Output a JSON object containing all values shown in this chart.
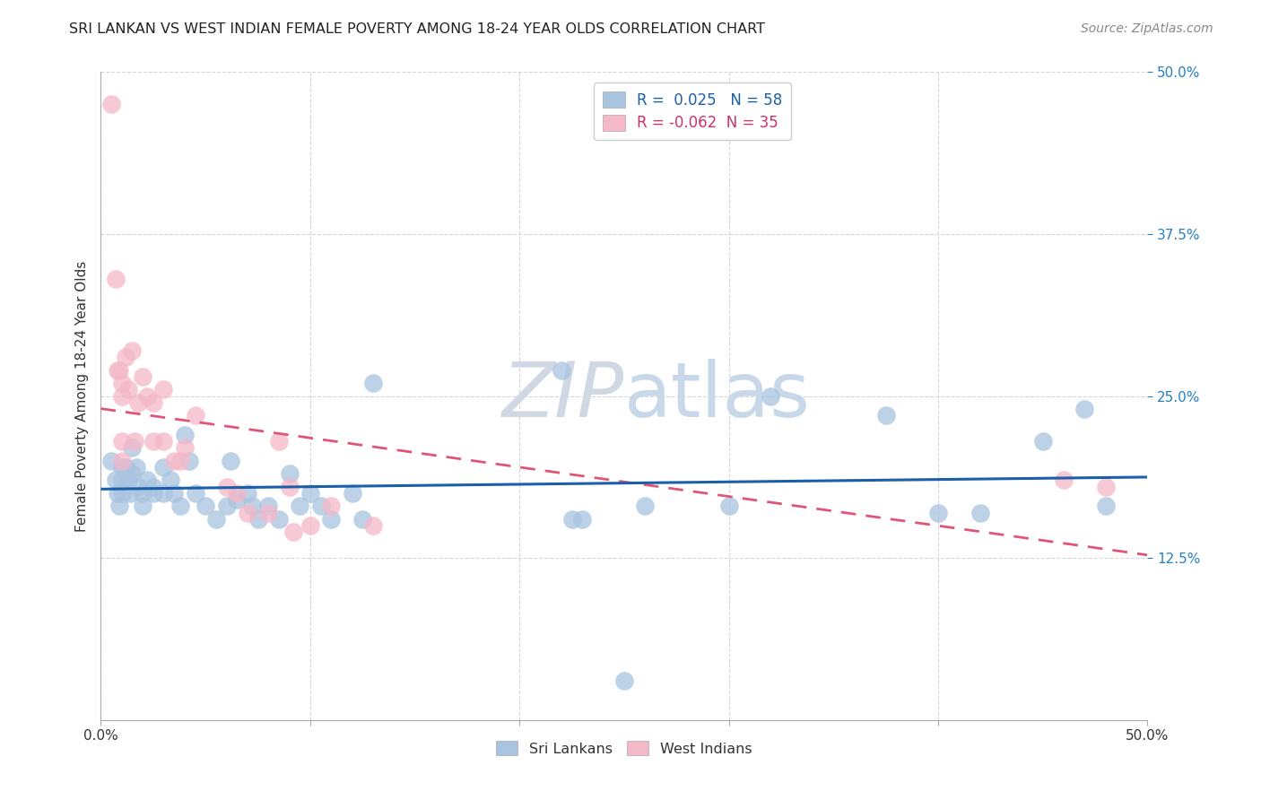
{
  "title": "SRI LANKAN VS WEST INDIAN FEMALE POVERTY AMONG 18-24 YEAR OLDS CORRELATION CHART",
  "source": "Source: ZipAtlas.com",
  "ylabel": "Female Poverty Among 18-24 Year Olds",
  "xlim": [
    0.0,
    0.5
  ],
  "ylim": [
    0.0,
    0.5
  ],
  "xticks": [
    0.0,
    0.1,
    0.2,
    0.3,
    0.4,
    0.5
  ],
  "yticks": [
    0.125,
    0.25,
    0.375,
    0.5
  ],
  "xticklabels": [
    "0.0%",
    "",
    "",
    "",
    "",
    "50.0%"
  ],
  "yticklabels_right": [
    "12.5%",
    "25.0%",
    "37.5%",
    "50.0%"
  ],
  "sri_lankan_R": "0.025",
  "sri_lankan_N": "58",
  "west_indian_R": "-0.062",
  "west_indian_N": "35",
  "sri_lankan_color": "#a8c4e0",
  "west_indian_color": "#f4b8c8",
  "sri_lankan_line_color": "#1a5fa8",
  "west_indian_line_color": "#e05575",
  "background_color": "#ffffff",
  "watermark_color": "#cfd8e3",
  "sri_lankans_x": [
    0.005,
    0.007,
    0.008,
    0.009,
    0.01,
    0.01,
    0.01,
    0.012,
    0.013,
    0.014,
    0.015,
    0.015,
    0.017,
    0.018,
    0.02,
    0.02,
    0.022,
    0.025,
    0.025,
    0.03,
    0.03,
    0.033,
    0.035,
    0.038,
    0.04,
    0.042,
    0.045,
    0.05,
    0.055,
    0.06,
    0.062,
    0.065,
    0.07,
    0.072,
    0.075,
    0.08,
    0.085,
    0.09,
    0.095,
    0.1,
    0.105,
    0.11,
    0.12,
    0.125,
    0.13,
    0.22,
    0.225,
    0.23,
    0.25,
    0.26,
    0.3,
    0.32,
    0.375,
    0.4,
    0.42,
    0.45,
    0.47,
    0.48
  ],
  "sri_lankans_y": [
    0.2,
    0.185,
    0.175,
    0.165,
    0.195,
    0.185,
    0.175,
    0.195,
    0.185,
    0.175,
    0.21,
    0.19,
    0.195,
    0.18,
    0.175,
    0.165,
    0.185,
    0.18,
    0.175,
    0.195,
    0.175,
    0.185,
    0.175,
    0.165,
    0.22,
    0.2,
    0.175,
    0.165,
    0.155,
    0.165,
    0.2,
    0.17,
    0.175,
    0.165,
    0.155,
    0.165,
    0.155,
    0.19,
    0.165,
    0.175,
    0.165,
    0.155,
    0.175,
    0.155,
    0.26,
    0.27,
    0.155,
    0.155,
    0.03,
    0.165,
    0.165,
    0.25,
    0.235,
    0.16,
    0.16,
    0.215,
    0.24,
    0.165
  ],
  "west_indians_x": [
    0.005,
    0.007,
    0.008,
    0.009,
    0.01,
    0.01,
    0.01,
    0.01,
    0.012,
    0.013,
    0.015,
    0.016,
    0.018,
    0.02,
    0.022,
    0.025,
    0.025,
    0.03,
    0.03,
    0.035,
    0.038,
    0.04,
    0.045,
    0.06,
    0.065,
    0.07,
    0.08,
    0.085,
    0.09,
    0.092,
    0.1,
    0.11,
    0.13,
    0.46,
    0.48
  ],
  "west_indians_y": [
    0.475,
    0.34,
    0.27,
    0.27,
    0.26,
    0.25,
    0.215,
    0.2,
    0.28,
    0.255,
    0.285,
    0.215,
    0.245,
    0.265,
    0.25,
    0.245,
    0.215,
    0.255,
    0.215,
    0.2,
    0.2,
    0.21,
    0.235,
    0.18,
    0.175,
    0.16,
    0.16,
    0.215,
    0.18,
    0.145,
    0.15,
    0.165,
    0.15,
    0.185,
    0.18
  ]
}
